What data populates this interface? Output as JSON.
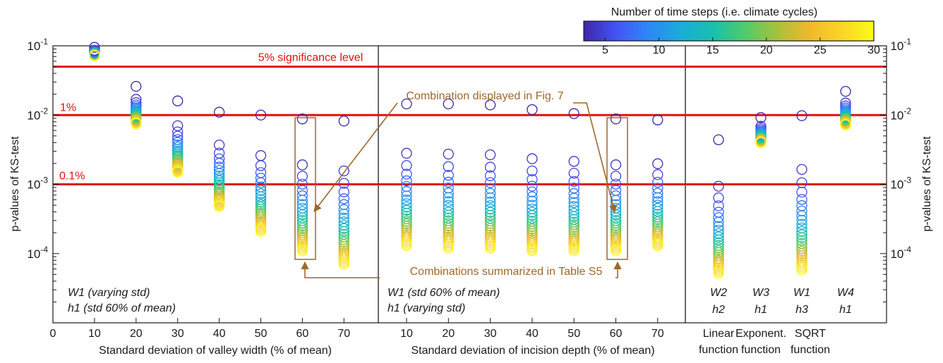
{
  "chart_data": {
    "type": "scatter",
    "title": "",
    "y_axis": {
      "label_left": "p-values of KS-test",
      "label_right": "p-values of KS-test",
      "scale": "log",
      "range": [
        1e-05,
        0.1
      ],
      "ticks": [
        {
          "value": 0.1,
          "base": "10",
          "exp": "-1"
        },
        {
          "value": 0.01,
          "base": "10",
          "exp": "-2"
        },
        {
          "value": 0.001,
          "base": "10",
          "exp": "-3"
        },
        {
          "value": 0.0001,
          "base": "10",
          "exp": "-4"
        }
      ]
    },
    "colorbar": {
      "label": "Number of time steps (i.e. climate cycles)",
      "range": [
        3,
        30
      ],
      "ticks": [
        "5",
        "10",
        "15",
        "20",
        "25",
        "30"
      ],
      "colormap": [
        "#3e26a8",
        "#4353f5",
        "#2e87f7",
        "#1aacdb",
        "#17c0ae",
        "#50cb6c",
        "#a7c13b",
        "#f0b82c",
        "#fcd428",
        "#f9fb15"
      ]
    },
    "thresholds": [
      {
        "value": 0.05,
        "label": "5% significance level",
        "color": "#e01010"
      },
      {
        "value": 0.01,
        "label": "1%",
        "color": "#e01010"
      },
      {
        "value": 0.001,
        "label": "0.1%",
        "color": "#e01010"
      }
    ],
    "panels": [
      {
        "xlabel": "Standard deviation of valley width (% of mean)",
        "annotation": [
          "W1 (varying std)",
          "h1 (std 60% of mean)"
        ],
        "x_ticks": [
          "0",
          "10",
          "20",
          "30",
          "40",
          "50",
          "60",
          "70"
        ],
        "groups": [
          {
            "x": "10",
            "pmax": 0.095,
            "pmin": 0.072
          },
          {
            "x": "20",
            "pmax": 0.026,
            "pmin": 0.0075
          },
          {
            "x": "30",
            "pmax": 0.016,
            "pmin": 0.0015
          },
          {
            "x": "40",
            "pmax": 0.011,
            "pmin": 0.00048
          },
          {
            "x": "50",
            "pmax": 0.01,
            "pmin": 0.00021
          },
          {
            "x": "60",
            "pmax": 0.0088,
            "pmin": 0.00011
          },
          {
            "x": "70",
            "pmax": 0.0082,
            "pmin": 7e-05
          }
        ]
      },
      {
        "xlabel": "Standard deviation of incision depth (% of mean)",
        "annotation": [
          "W1 (std 60% of mean)",
          "h1 (varying std)"
        ],
        "x_ticks": [
          "10",
          "20",
          "30",
          "40",
          "50",
          "60",
          "70"
        ],
        "groups": [
          {
            "x": "10",
            "pmax": 0.0145,
            "pmin": 0.00013
          },
          {
            "x": "20",
            "pmax": 0.0145,
            "pmin": 0.00012
          },
          {
            "x": "30",
            "pmax": 0.014,
            "pmin": 0.00012
          },
          {
            "x": "40",
            "pmax": 0.012,
            "pmin": 0.00011
          },
          {
            "x": "50",
            "pmax": 0.0105,
            "pmin": 0.00011
          },
          {
            "x": "60",
            "pmax": 0.0088,
            "pmin": 0.00011
          },
          {
            "x": "70",
            "pmax": 0.0085,
            "pmin": 0.00013
          }
        ]
      },
      {
        "xlabel": "",
        "annotation": [],
        "x_ticks": [],
        "groups": [
          {
            "x": "Linear function",
            "label_top": "W2",
            "label_bottom": "h2",
            "category": [
              "Linear",
              "function"
            ],
            "pmax": 0.0044,
            "pmin": 5.2e-05
          },
          {
            "x": "Exponent. function",
            "label_top": "W3",
            "label_bottom": "h1",
            "category": [
              "Exponent.",
              "function"
            ],
            "pmax": 0.0092,
            "pmin": 0.004
          },
          {
            "x": "SQRT function",
            "label_top": "W1",
            "label_bottom": "h3",
            "category": [
              "SQRT",
              "function"
            ],
            "pmax": 0.0098,
            "pmin": 5.8e-05
          },
          {
            "x": "W4 h1",
            "label_top": "W4",
            "label_bottom": "h1",
            "category": [],
            "pmax": 0.022,
            "pmin": 0.0072
          }
        ]
      }
    ],
    "annotations": {
      "fig7_label": "Combination displayed in Fig. 7",
      "table_label": "Combinations summarized in Table S5",
      "color": "#a0672a"
    }
  }
}
